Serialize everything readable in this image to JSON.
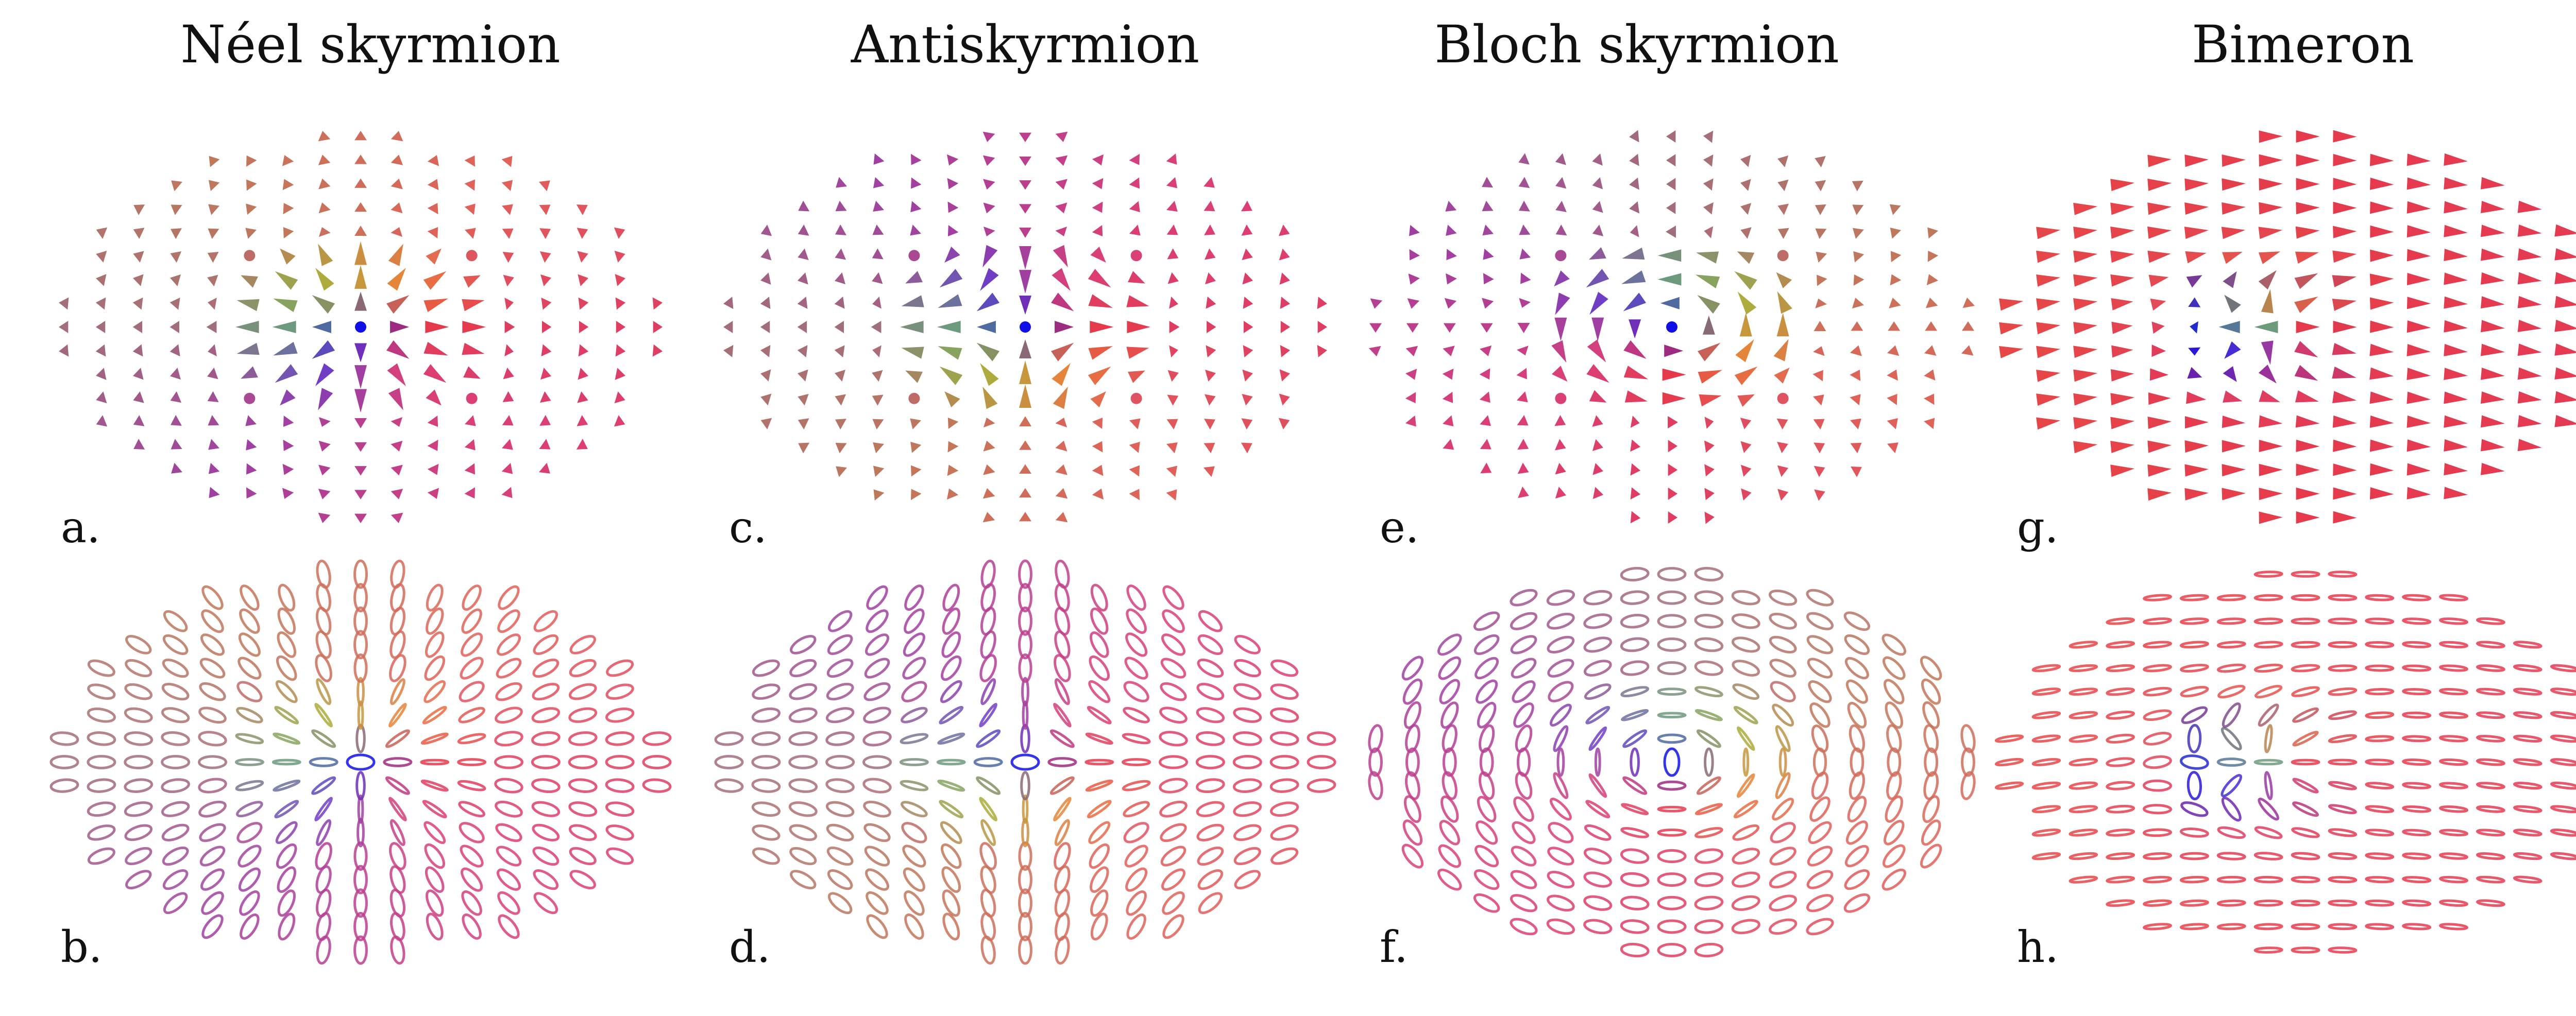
{
  "columns": [
    {
      "title": "Néel skyrmion",
      "top_label": "a.",
      "bottom_label": "b.",
      "type": "neel"
    },
    {
      "title": "Antiskyrmion",
      "top_label": "c.",
      "bottom_label": "d.",
      "type": "anti"
    },
    {
      "title": "Bloch skyrmion",
      "top_label": "e.",
      "bottom_label": "f.",
      "type": "bloch"
    },
    {
      "title": "Bimeron",
      "top_label": "g.",
      "bottom_label": "h.",
      "type": "bimeron"
    }
  ],
  "colors": {
    "background": "#ffffff",
    "text": "#111111",
    "core": "#1010e6",
    "outer_pink": "#d8407a",
    "red": "#e63a4a",
    "orange": "#e8823a",
    "olive": "#a9ae3c",
    "green": "#6e9a7c",
    "purple": "#6a3ec8"
  },
  "icons": {
    "top_row": "magnetization-arrow-field",
    "bottom_row": "ellipse-polarization-field"
  }
}
